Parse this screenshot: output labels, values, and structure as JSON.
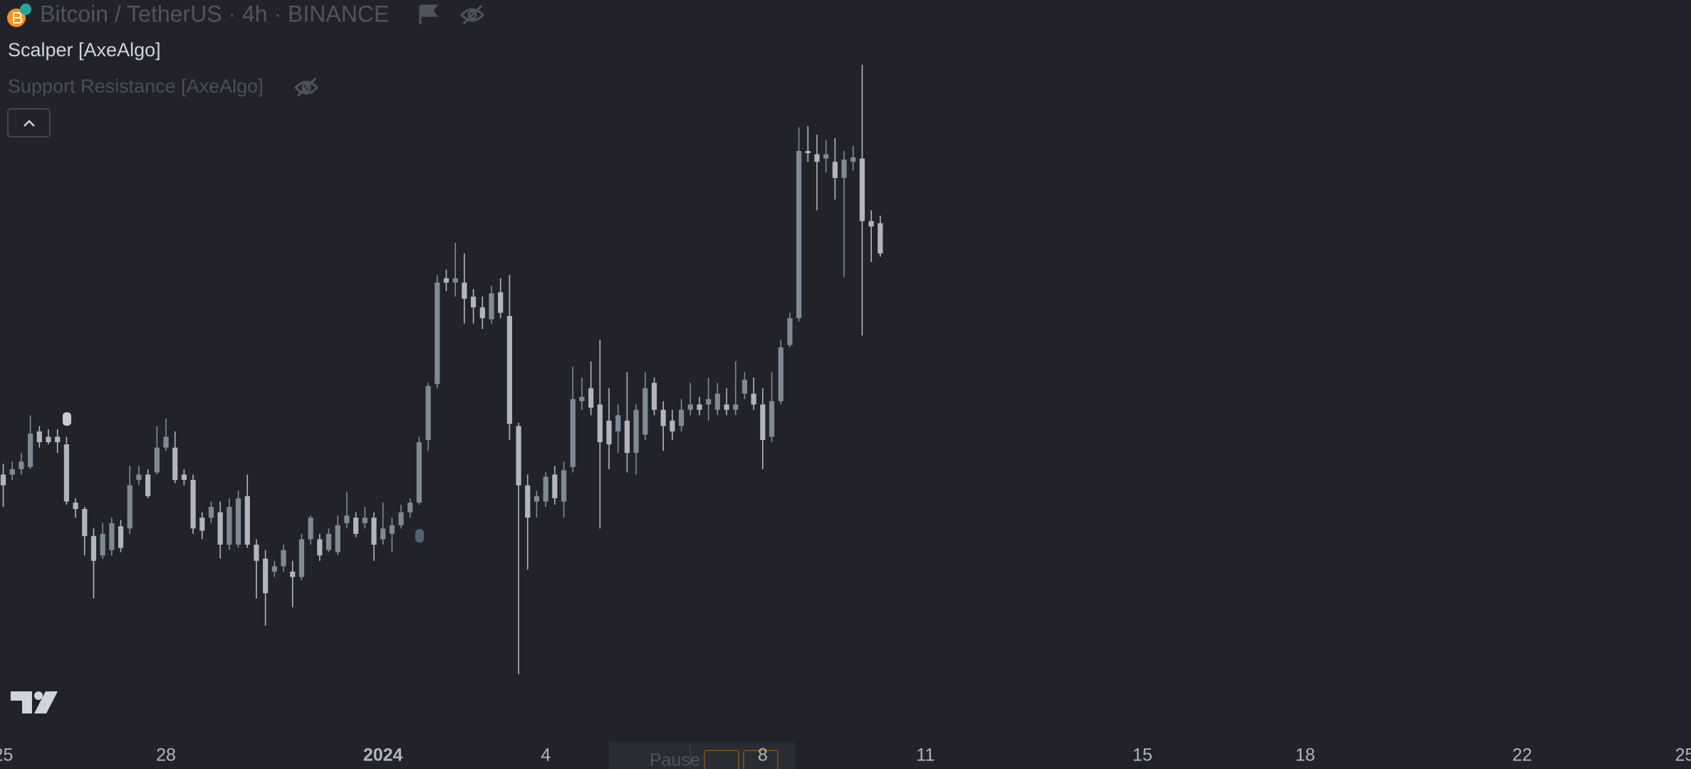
{
  "header": {
    "title": "Bitcoin / TetherUS · 4h · BINANCE",
    "indicators": [
      "Scalper [AxeAlgo]",
      "Support Resistance [AxeAlgo]"
    ]
  },
  "chart_data": {
    "type": "candlestick",
    "open": [
      43400,
      43400,
      43475,
      43505,
      44000,
      43925,
      43925,
      43820,
      43010,
      42920,
      42545,
      42275,
      42350,
      42680,
      42650,
      43325,
      43400,
      43430,
      43775,
      43775,
      43400,
      43325,
      42800,
      42800,
      42875,
      42425,
      42425,
      43100,
      42425,
      42230,
      42050,
      42125,
      42050,
      41975,
      42500,
      42500,
      42350,
      42320,
      42725,
      42800,
      42725,
      42800,
      42500,
      42575,
      42695,
      42875,
      43010,
      43880,
      44660,
      46130,
      46070,
      46070,
      45875,
      45725,
      45560,
      45935,
      45605,
      44075,
      43250,
      43025,
      43025,
      43400,
      43025,
      43505,
      44420,
      44600,
      44375,
      44150,
      44000,
      44150,
      43700,
      43955,
      44675,
      44300,
      44150,
      44075,
      44300,
      44375,
      44375,
      44300,
      44375,
      44300,
      44525,
      44525,
      44375,
      43925,
      44420,
      45200,
      45575,
      47900,
      47855,
      47795,
      47750,
      47525,
      47750,
      47795,
      46925,
      46895
    ],
    "high": [
      43550,
      43580,
      43700,
      44225,
      44075,
      44030,
      44030,
      43925,
      43070,
      42950,
      42650,
      42725,
      42800,
      42770,
      43520,
      43520,
      43475,
      44075,
      44180,
      44000,
      43475,
      43400,
      42875,
      43025,
      43025,
      43070,
      43175,
      43400,
      42500,
      42350,
      42200,
      42425,
      42200,
      42575,
      42830,
      42575,
      42650,
      42830,
      43160,
      42875,
      42950,
      42875,
      43010,
      42800,
      42980,
      43070,
      43925,
      44675,
      46175,
      46250,
      46625,
      46475,
      45980,
      45875,
      46025,
      46130,
      46175,
      44120,
      43400,
      43175,
      43430,
      43520,
      43580,
      44900,
      44750,
      44975,
      45275,
      44600,
      44375,
      44825,
      44375,
      44825,
      44750,
      44420,
      44300,
      44450,
      44675,
      44480,
      44750,
      44675,
      44600,
      44975,
      44825,
      44750,
      44600,
      44825,
      45275,
      45650,
      48230,
      48245,
      48125,
      48050,
      48080,
      47900,
      47975,
      49100,
      47075,
      47000
    ],
    "low": [
      42950,
      43325,
      43400,
      43475,
      43775,
      43820,
      43700,
      42980,
      42800,
      42275,
      41675,
      42230,
      42275,
      42320,
      42575,
      43250,
      43070,
      43400,
      43730,
      43280,
      43250,
      42575,
      42500,
      42725,
      42230,
      42350,
      42380,
      42380,
      41675,
      41300,
      41975,
      42050,
      41555,
      41930,
      42425,
      42200,
      42320,
      42275,
      42650,
      42530,
      42650,
      42200,
      42425,
      42320,
      42650,
      42800,
      42980,
      43730,
      44600,
      45950,
      45875,
      45500,
      45500,
      45425,
      45500,
      45575,
      43880,
      40625,
      42080,
      42800,
      42950,
      42980,
      42800,
      43430,
      44300,
      44225,
      42650,
      43475,
      43700,
      43430,
      43400,
      43880,
      44225,
      43730,
      43880,
      44000,
      44225,
      44225,
      44150,
      44225,
      44225,
      44225,
      44450,
      44300,
      43475,
      43850,
      44375,
      45170,
      45530,
      47750,
      47075,
      47600,
      47225,
      46145,
      47630,
      45335,
      46355,
      46430
    ],
    "close": [
      43250,
      43475,
      43580,
      43970,
      43850,
      43850,
      43850,
      43025,
      42920,
      42545,
      42200,
      42575,
      42725,
      42380,
      43250,
      43400,
      43100,
      43775,
      43925,
      43325,
      43325,
      42650,
      42620,
      42950,
      42425,
      42950,
      43070,
      42425,
      42200,
      41750,
      42125,
      42350,
      41975,
      42500,
      42800,
      42275,
      42575,
      42695,
      42830,
      42575,
      42800,
      42425,
      42650,
      42695,
      42875,
      43010,
      43850,
      44630,
      46070,
      46070,
      46130,
      45845,
      45725,
      45575,
      45920,
      45650,
      44105,
      43250,
      42800,
      43100,
      43370,
      43070,
      43460,
      44450,
      44480,
      44330,
      43850,
      43820,
      44225,
      43700,
      44300,
      44600,
      44300,
      44075,
      44000,
      44300,
      44375,
      44300,
      44450,
      44525,
      44300,
      44375,
      44720,
      44375,
      43880,
      44420,
      45170,
      45575,
      47900,
      47870,
      47750,
      47855,
      47525,
      47780,
      47810,
      46925,
      46850,
      46475
    ],
    "up_color": "#7e8a96",
    "down_color": "#b2b5be",
    "ylim": [
      39680,
      50000
    ],
    "xticks": [
      {
        "value": 0,
        "label": "25"
      },
      {
        "value": 18,
        "label": "28"
      },
      {
        "value": 42,
        "label": "2024"
      },
      {
        "value": 60,
        "label": "4"
      },
      {
        "value": 84,
        "label": "8"
      },
      {
        "value": 102,
        "label": "11"
      },
      {
        "value": 126,
        "label": "15"
      },
      {
        "value": 144,
        "label": "18"
      },
      {
        "value": 168,
        "label": "22"
      },
      {
        "value": 186,
        "label": "25"
      }
    ]
  },
  "controls": {
    "pause": "Pause"
  }
}
